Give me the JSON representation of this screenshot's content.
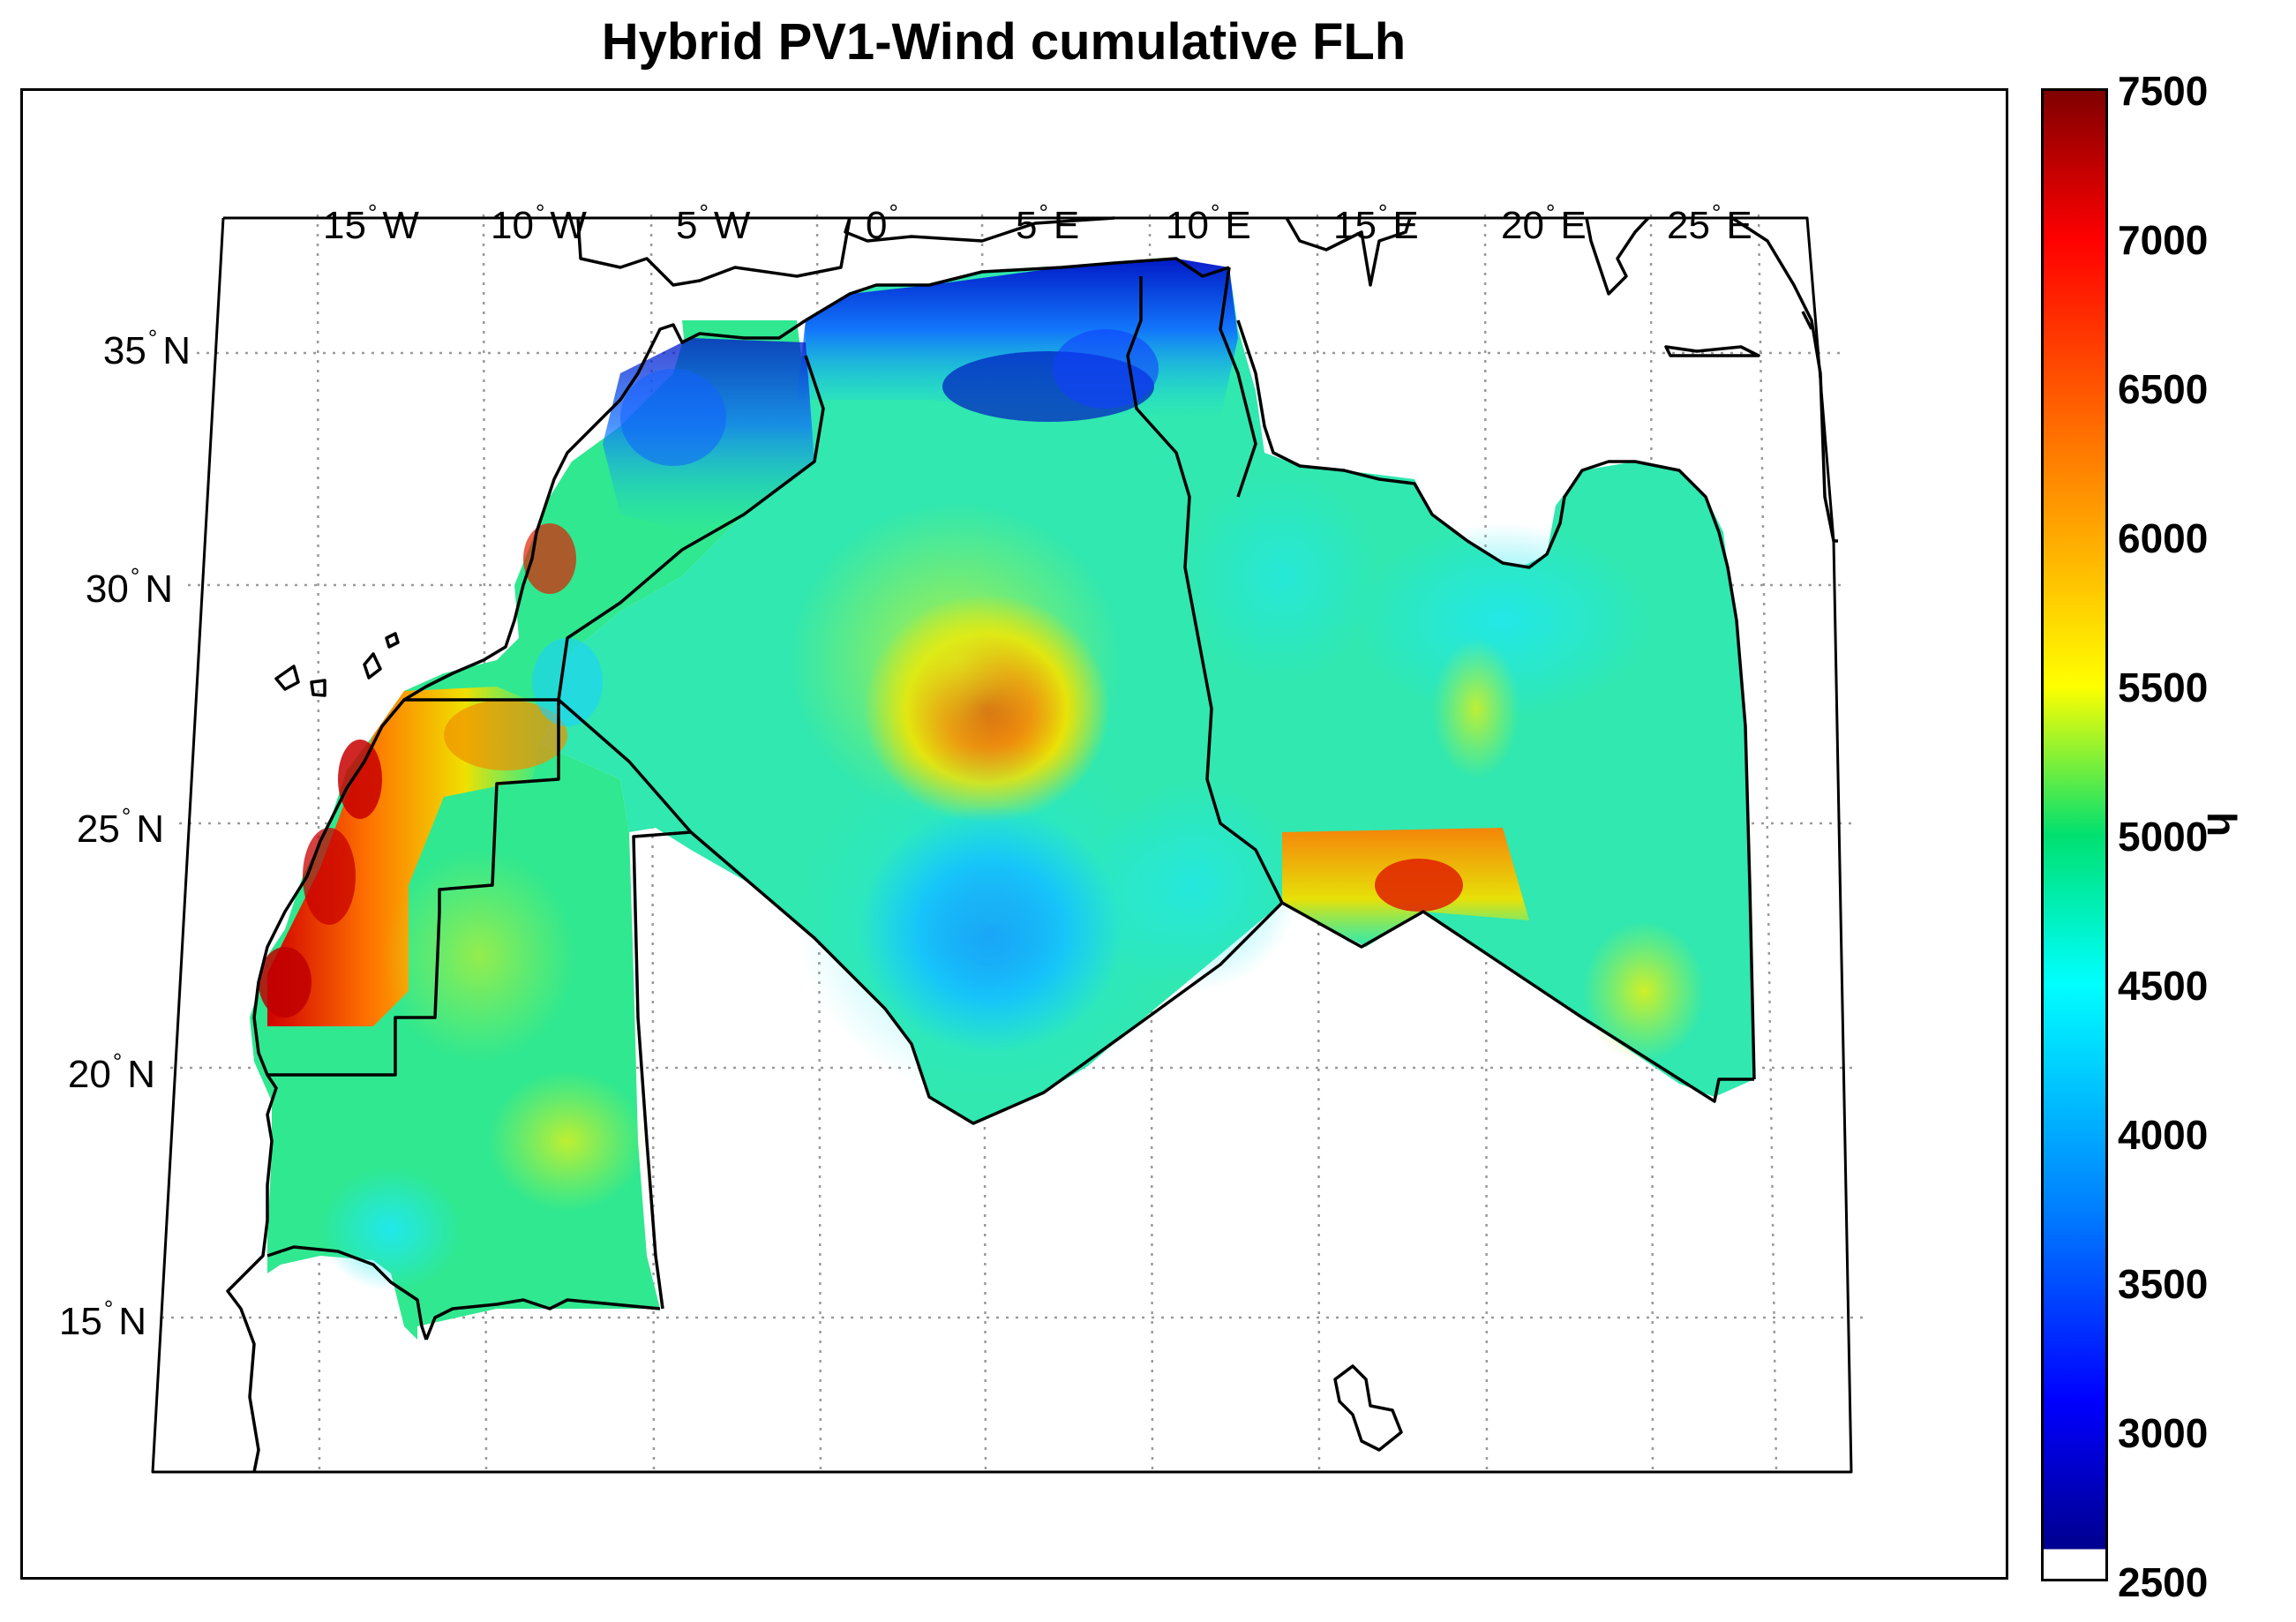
{
  "title": "Hybrid PV1-Wind cumulative FLh",
  "map": {
    "lon_labels": [
      {
        "value": "15",
        "hemi": "W"
      },
      {
        "value": "10",
        "hemi": "W"
      },
      {
        "value": "5",
        "hemi": "W"
      },
      {
        "value": "0",
        "hemi": ""
      },
      {
        "value": "5",
        "hemi": "E"
      },
      {
        "value": "10",
        "hemi": "E"
      },
      {
        "value": "15",
        "hemi": "E"
      },
      {
        "value": "20",
        "hemi": "E"
      },
      {
        "value": "25",
        "hemi": "E"
      }
    ],
    "lat_labels": [
      {
        "value": "35",
        "hemi": "N"
      },
      {
        "value": "30",
        "hemi": "N"
      },
      {
        "value": "25",
        "hemi": "N"
      },
      {
        "value": "20",
        "hemi": "N"
      },
      {
        "value": "15",
        "hemi": "N"
      }
    ],
    "grid": true,
    "projection": "conic",
    "hotspots": [
      {
        "lon": 3,
        "lat": 27.5,
        "value_h": 6800
      },
      {
        "lon": 3,
        "lat": 22.5,
        "value_h": 3900
      },
      {
        "lon": 3,
        "lat": 36.5,
        "value_h": 3000
      },
      {
        "lon": -8,
        "lat": 33,
        "value_h": 3800
      },
      {
        "lon": -16,
        "lat": 23,
        "value_h": 7000
      },
      {
        "lon": 15,
        "lat": 23.5,
        "value_h": 6400
      }
    ]
  },
  "colorbar": {
    "ticks": [
      "7500",
      "7000",
      "6500",
      "6000",
      "5500",
      "5000",
      "4500",
      "4000",
      "3500",
      "3000",
      "2500"
    ],
    "unit": "h",
    "min": 2500,
    "max": 7500,
    "colormap": "jet",
    "colors": [
      "#00008f",
      "#0000ff",
      "#0080ff",
      "#00ffff",
      "#00e070",
      "#80ff00",
      "#ffff00",
      "#ff8000",
      "#ff0000",
      "#800000"
    ]
  }
}
